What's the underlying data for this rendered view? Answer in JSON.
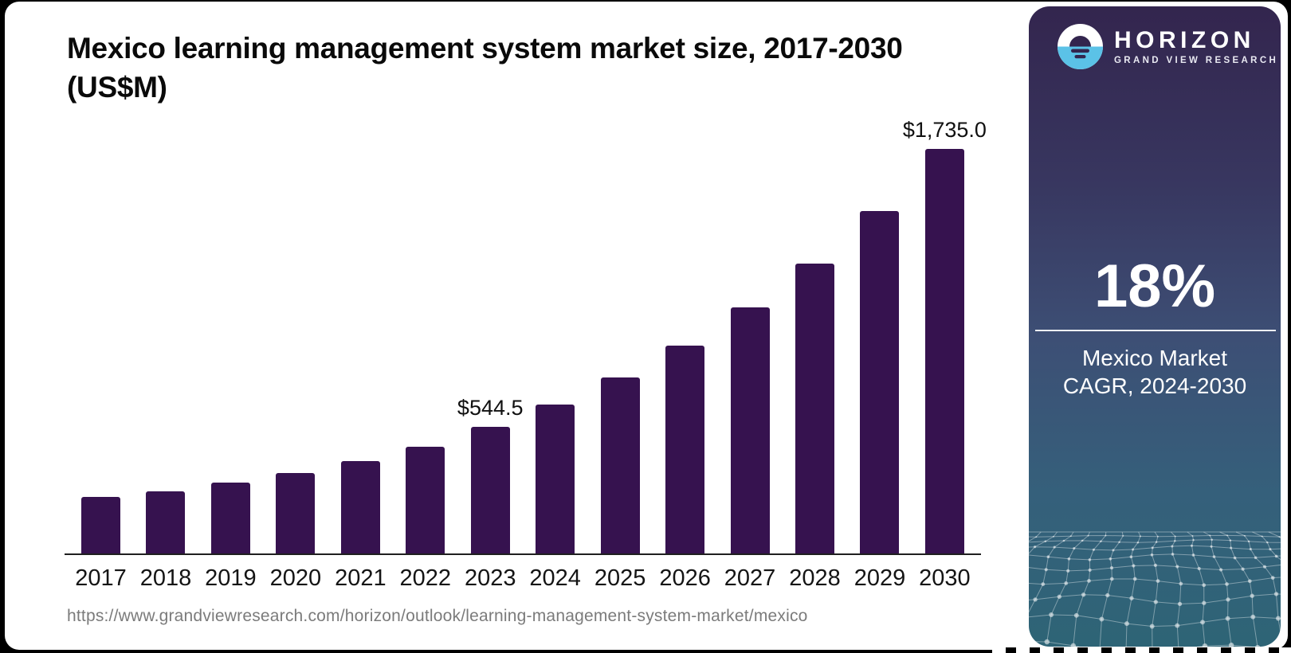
{
  "title_line1": "Mexico learning management system market size, 2017-2030",
  "title_line2": "(US$M)",
  "source_url": "https://www.grandviewresearch.com/horizon/outlook/learning-management-system-market/mexico",
  "chart_data": {
    "type": "bar",
    "title": "Mexico learning management system market size, 2017-2030 (US$M)",
    "categories": [
      "2017",
      "2018",
      "2019",
      "2020",
      "2021",
      "2022",
      "2023",
      "2024",
      "2025",
      "2026",
      "2027",
      "2028",
      "2029",
      "2030"
    ],
    "values": [
      245,
      270,
      306,
      348,
      400,
      460,
      544.5,
      642.5,
      758.2,
      894.6,
      1055.7,
      1245.7,
      1470.0,
      1735.0
    ],
    "point_labels": [
      "",
      "",
      "",
      "",
      "",
      "",
      "$544.5",
      "",
      "",
      "",
      "",
      "",
      "",
      "$1,735.0"
    ],
    "bar_color": "#36124f",
    "ylim": [
      0,
      1800
    ],
    "grid": "off",
    "legend": "none",
    "note": "only 2023 and 2030 carry data labels"
  },
  "sidebar": {
    "brand": "HORIZON",
    "brand_sub": "GRAND VIEW RESEARCH",
    "stat_value": "18%",
    "stat_label_line1": "Mexico Market",
    "stat_label_line2": "CAGR, 2024-2030",
    "accent_blue": "#5bc2e7",
    "gradient_top": "#33254e",
    "gradient_bottom": "#2e6476"
  }
}
